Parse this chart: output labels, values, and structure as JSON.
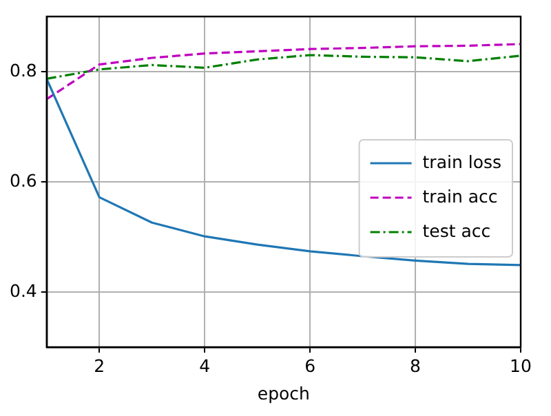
{
  "chart_data": {
    "type": "line",
    "xlabel": "epoch",
    "x": [
      1,
      2,
      3,
      4,
      5,
      6,
      7,
      8,
      9,
      10
    ],
    "series": [
      {
        "name": "train loss",
        "color": "#1f77b4",
        "line_style": "solid",
        "values": [
          0.787,
          0.572,
          0.526,
          0.501,
          0.486,
          0.474,
          0.465,
          0.457,
          0.451,
          0.449
        ]
      },
      {
        "name": "train acc",
        "color": "#bf00bf",
        "line_style": "dashed",
        "values": [
          0.75,
          0.813,
          0.825,
          0.833,
          0.837,
          0.841,
          0.843,
          0.846,
          0.847,
          0.85
        ]
      },
      {
        "name": "test acc",
        "color": "#008000",
        "line_style": "dashdot",
        "values": [
          0.787,
          0.804,
          0.812,
          0.807,
          0.822,
          0.83,
          0.827,
          0.826,
          0.819,
          0.829
        ]
      }
    ],
    "xlim": [
      1,
      10
    ],
    "ylim": [
      0.3,
      0.9
    ],
    "xticks": [
      2,
      4,
      6,
      8,
      10
    ],
    "yticks": [
      0.4,
      0.6,
      0.8
    ],
    "grid": true,
    "legend": "center right"
  }
}
